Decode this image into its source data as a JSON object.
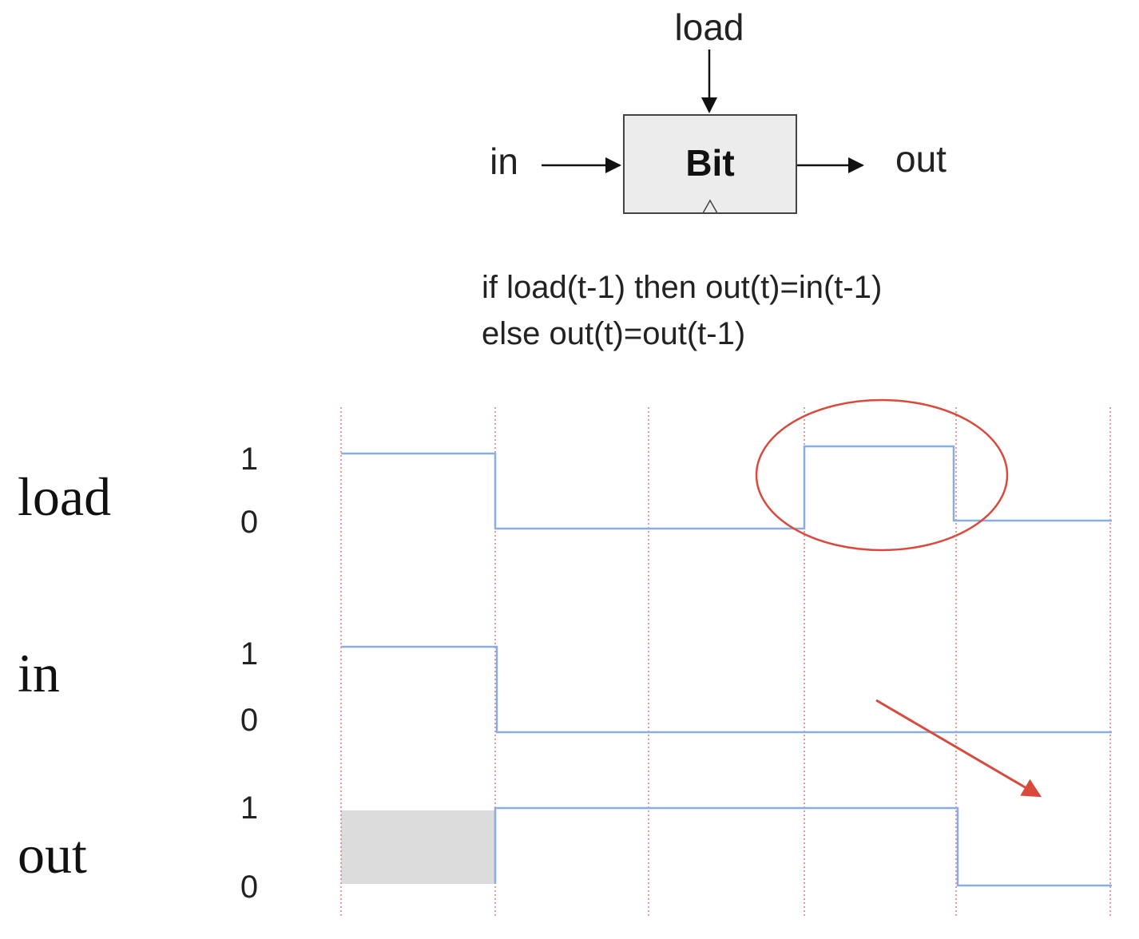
{
  "diagram": {
    "chip": {
      "name": "Bit",
      "input_label": "in",
      "output_label": "out",
      "load_label": "load"
    },
    "spec": {
      "line1": "if load(t-1) then out(t)=in(t-1)",
      "line2": "else out(t)=out(t-1)"
    }
  },
  "timing": {
    "level_high_label": "1",
    "level_low_label": "0",
    "signals": [
      {
        "name": "load",
        "levels": [
          1,
          0,
          0,
          1,
          0
        ]
      },
      {
        "name": "in",
        "levels": [
          1,
          0,
          0,
          0,
          0
        ]
      },
      {
        "name": "out",
        "levels": [
          null,
          1,
          1,
          1,
          0
        ]
      }
    ],
    "colors": {
      "waveform": "#8aaee0",
      "clock_line": "#e07a7a",
      "annotation": "#d94a3d",
      "unknown_fill": "#dcdcdc"
    }
  }
}
